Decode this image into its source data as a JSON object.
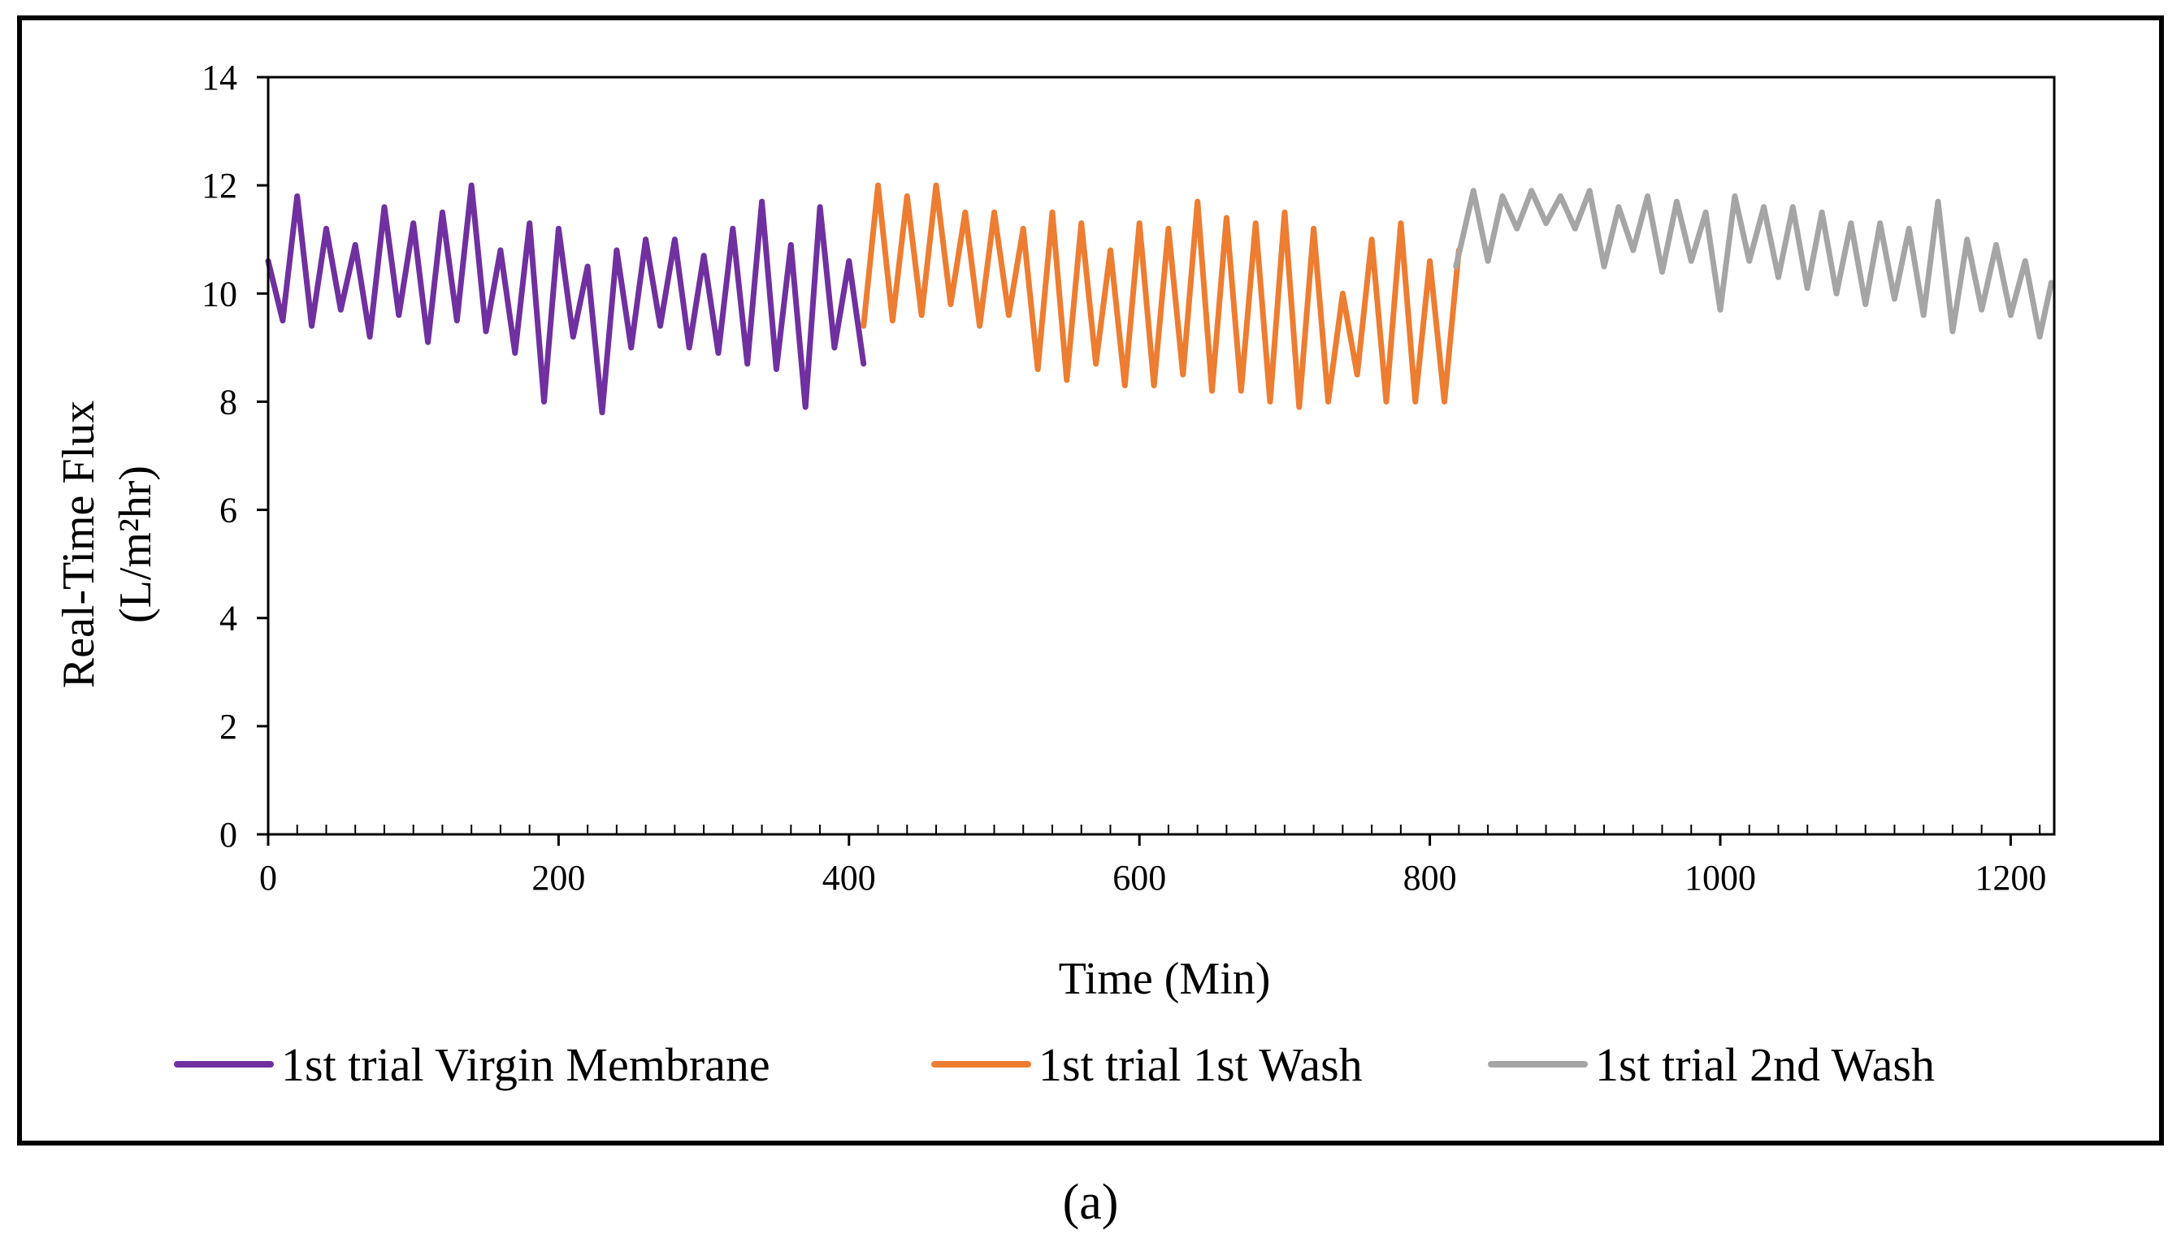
{
  "chart_data": {
    "type": "line",
    "title": "",
    "xlabel": "Time (Min)",
    "ylabel_line1": "Real-Time Flux",
    "ylabel_line2": "(L/m²hr)",
    "xlim": [
      0,
      1230
    ],
    "ylim": [
      0,
      14
    ],
    "xticks": [
      0,
      200,
      400,
      600,
      800,
      1000,
      1200
    ],
    "yticks": [
      0,
      2,
      4,
      6,
      8,
      10,
      12,
      14
    ],
    "grid": false,
    "legend_position": "bottom",
    "series": [
      {
        "name": "1st trial Virgin Membrane",
        "color": "#7030A0",
        "x": [
          0,
          10,
          20,
          30,
          40,
          50,
          60,
          70,
          80,
          90,
          100,
          110,
          120,
          130,
          140,
          150,
          160,
          170,
          180,
          190,
          200,
          210,
          220,
          230,
          240,
          250,
          260,
          270,
          280,
          290,
          300,
          310,
          320,
          330,
          340,
          350,
          360,
          370,
          380,
          390,
          400,
          410
        ],
        "y": [
          10.6,
          9.5,
          11.8,
          9.4,
          11.2,
          9.7,
          10.9,
          9.2,
          11.6,
          9.6,
          11.3,
          9.1,
          11.5,
          9.5,
          12.0,
          9.3,
          10.8,
          8.9,
          11.3,
          8.0,
          11.2,
          9.2,
          10.5,
          7.8,
          10.8,
          9.0,
          11.0,
          9.4,
          11.0,
          9.0,
          10.7,
          8.9,
          11.2,
          8.7,
          11.7,
          8.6,
          10.9,
          7.9,
          11.6,
          9.0,
          10.6,
          8.7
        ]
      },
      {
        "name": "1st trial 1st Wash",
        "color": "#ED7D31",
        "x": [
          410,
          420,
          430,
          440,
          450,
          460,
          470,
          480,
          490,
          500,
          510,
          520,
          530,
          540,
          550,
          560,
          570,
          580,
          590,
          600,
          610,
          620,
          630,
          640,
          650,
          660,
          670,
          680,
          690,
          700,
          710,
          720,
          730,
          740,
          750,
          760,
          770,
          780,
          790,
          800,
          810,
          820
        ],
        "y": [
          9.4,
          12.0,
          9.5,
          11.8,
          9.6,
          12.0,
          9.8,
          11.5,
          9.4,
          11.5,
          9.6,
          11.2,
          8.6,
          11.5,
          8.4,
          11.3,
          8.7,
          10.8,
          8.3,
          11.3,
          8.3,
          11.2,
          8.5,
          11.7,
          8.2,
          11.4,
          8.2,
          11.3,
          8.0,
          11.5,
          7.9,
          11.2,
          8.0,
          10.0,
          8.5,
          11.0,
          8.0,
          11.3,
          8.0,
          10.6,
          8.0,
          10.8
        ]
      },
      {
        "name": "1st trial 2nd Wash",
        "color": "#A5A5A5",
        "x": [
          818,
          830,
          840,
          850,
          860,
          870,
          880,
          890,
          900,
          910,
          920,
          930,
          940,
          950,
          960,
          970,
          980,
          990,
          1000,
          1010,
          1020,
          1030,
          1040,
          1050,
          1060,
          1070,
          1080,
          1090,
          1100,
          1110,
          1120,
          1130,
          1140,
          1150,
          1160,
          1170,
          1180,
          1190,
          1200,
          1210,
          1220,
          1228
        ],
        "y": [
          10.5,
          11.9,
          10.6,
          11.8,
          11.2,
          11.9,
          11.3,
          11.8,
          11.2,
          11.9,
          10.5,
          11.6,
          10.8,
          11.8,
          10.4,
          11.7,
          10.6,
          11.5,
          9.7,
          11.8,
          10.6,
          11.6,
          10.3,
          11.6,
          10.1,
          11.5,
          10.0,
          11.3,
          9.8,
          11.3,
          9.9,
          11.2,
          9.6,
          11.7,
          9.3,
          11.0,
          9.7,
          10.9,
          9.6,
          10.6,
          9.2,
          10.2
        ]
      }
    ],
    "panel_label": "(a)"
  }
}
